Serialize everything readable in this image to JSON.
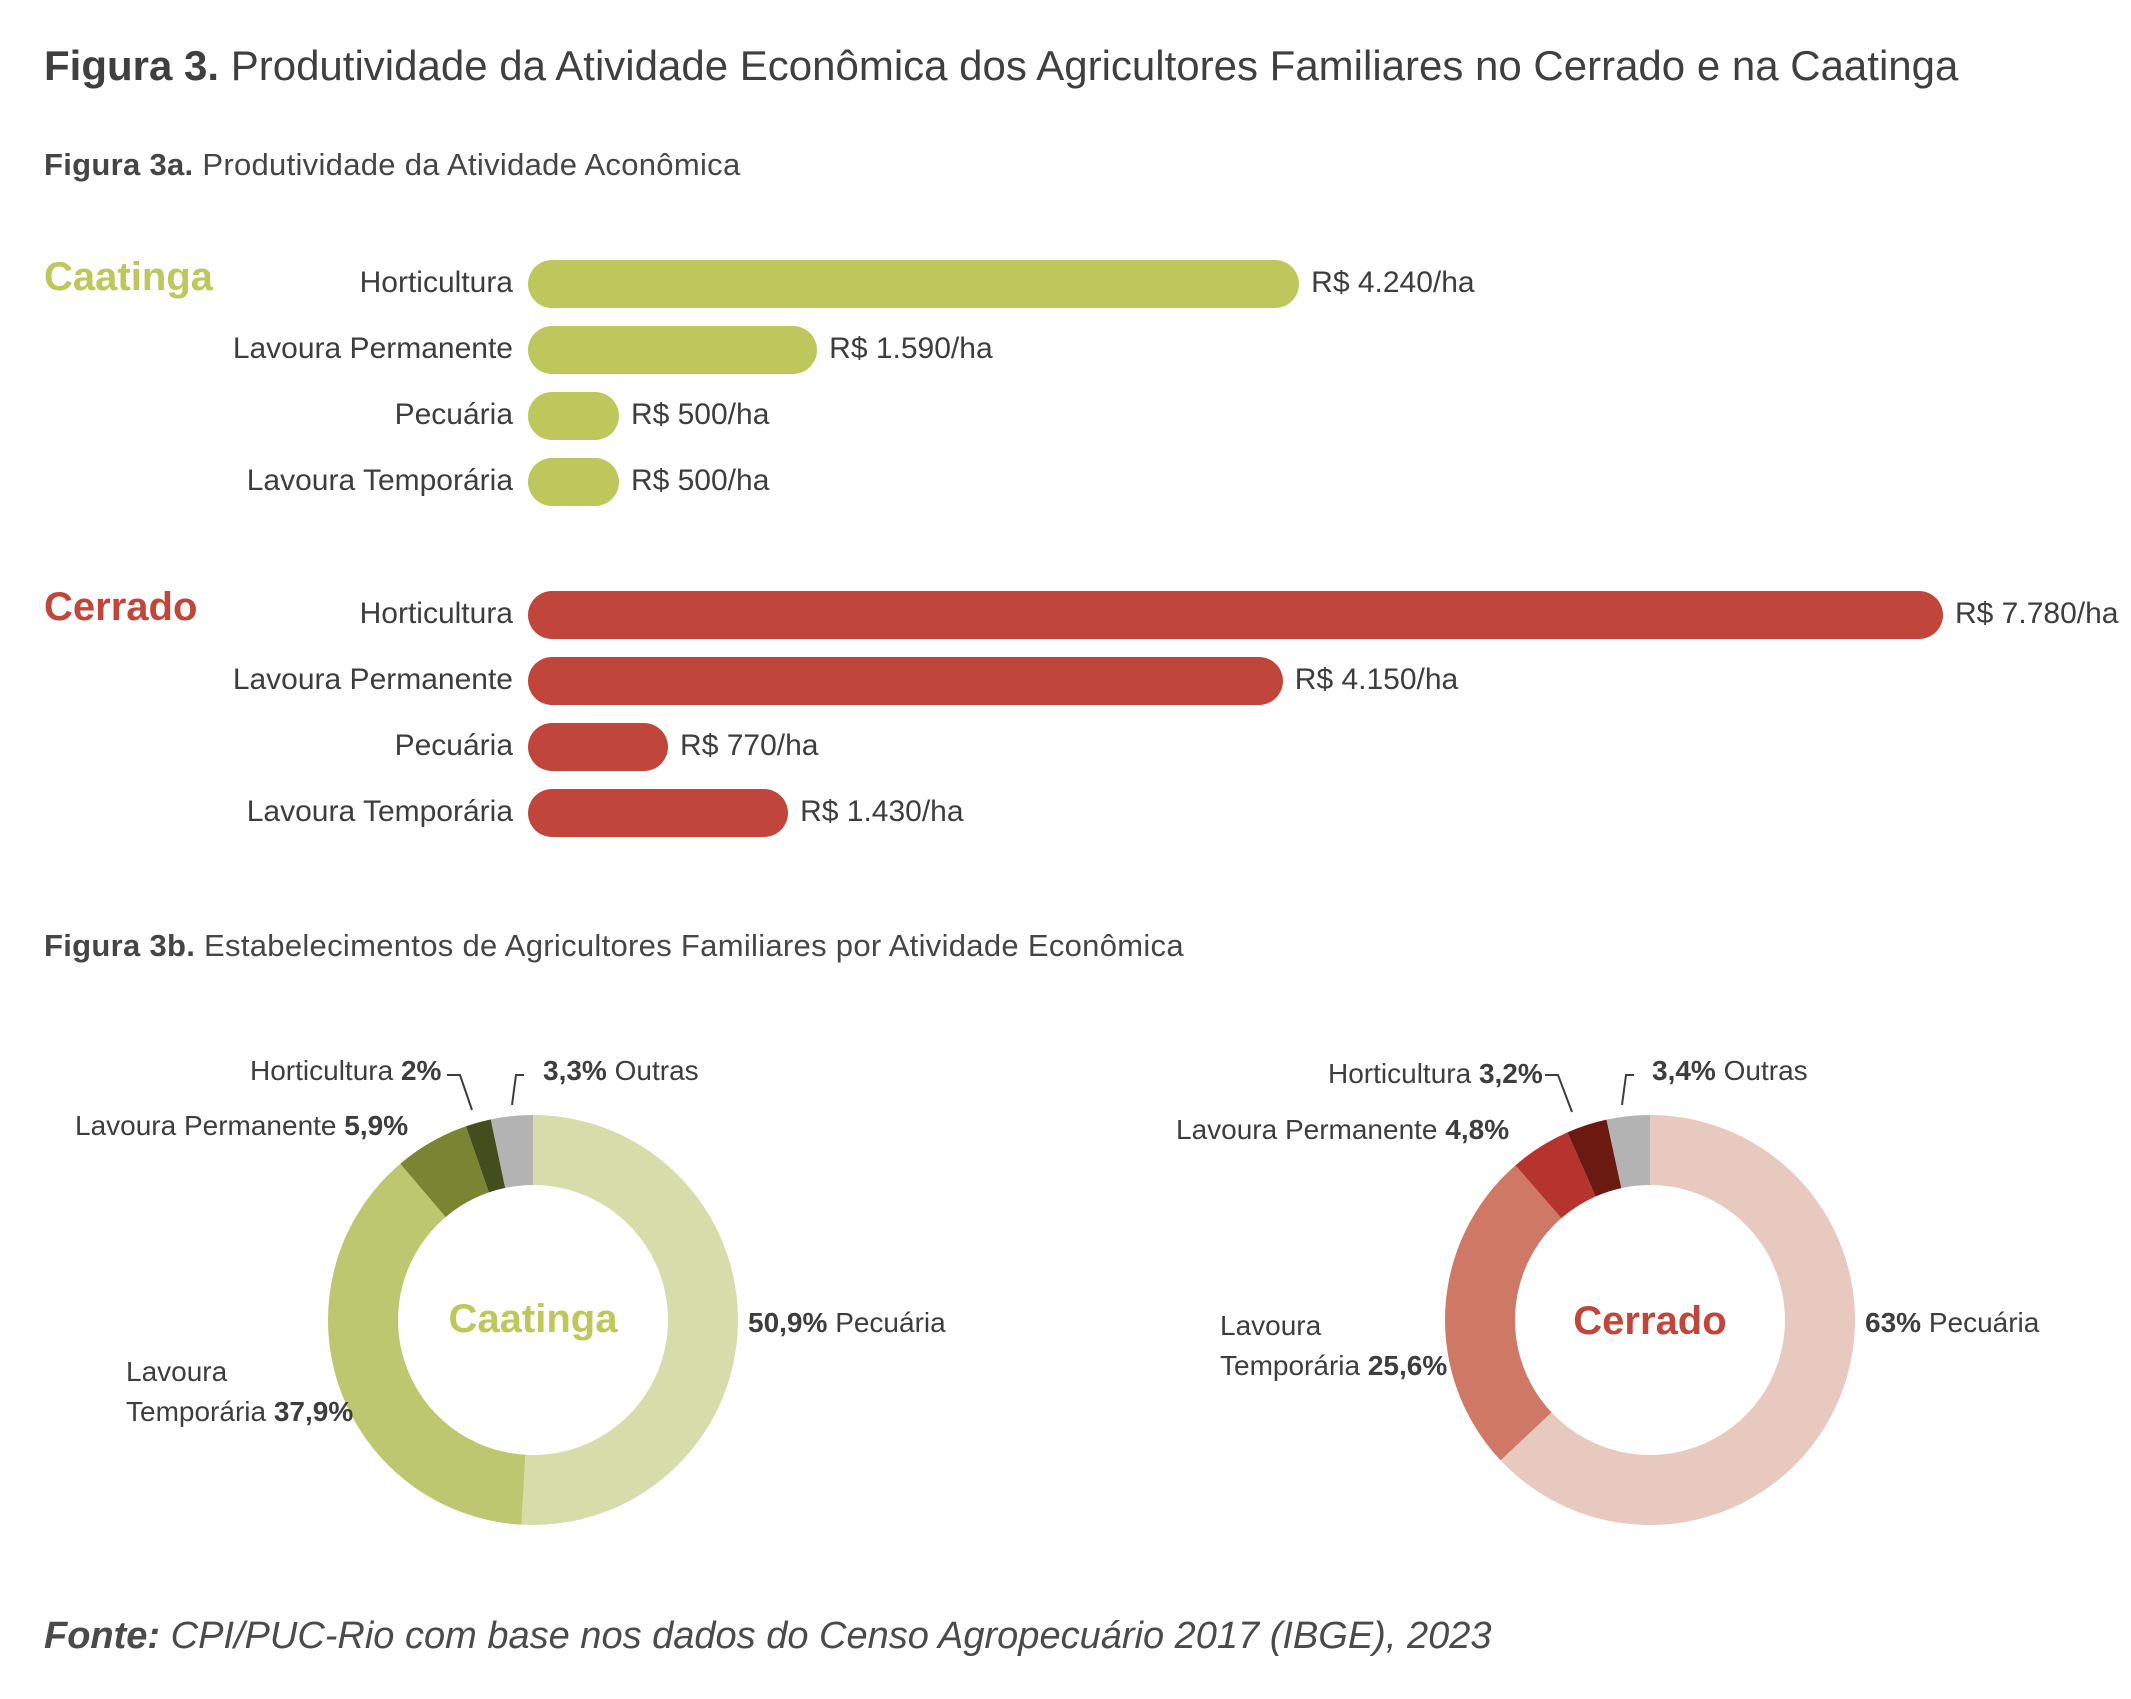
{
  "figure": {
    "title_bold": "Figura 3.",
    "title_rest": " Produtividade da Atividade Econômica dos Agricultores Familiares no Cerrado e na Caatinga"
  },
  "fig3a": {
    "title_bold": "Figura 3a.",
    "title_rest": " Produtividade da Atividade Aconômica"
  },
  "fig3b": {
    "title_bold": "Figura 3b.",
    "title_rest": " Estabelecimentos de Agricultores Familiares por Atividade Econômica"
  },
  "source": {
    "bold": "Fonte:",
    "rest": " CPI/PUC-Rio com base nos dados do Censo Agropecuário 2017 (IBGE), 2023"
  },
  "colors": {
    "caatinga": "#bdc75c",
    "cerrado": "#c0463b",
    "text": "#3d3d3d"
  },
  "chart_data": [
    {
      "type": "bar",
      "orientation": "horizontal",
      "title": "Figura 3a. Produtividade da Atividade Aconômica",
      "unit": "R$/ha",
      "groups": [
        {
          "name": "Caatinga",
          "categories": [
            "Horticultura",
            "Lavoura Permanente",
            "Pecuária",
            "Lavoura Temporária"
          ],
          "values": [
            4240,
            1590,
            500,
            500
          ],
          "value_labels": [
            "R$ 4.240/ha",
            "R$ 1.590/ha",
            "R$ 500/ha",
            "R$ 500/ha"
          ]
        },
        {
          "name": "Cerrado",
          "categories": [
            "Horticultura",
            "Lavoura Permanente",
            "Pecuária",
            "Lavoura Temporária"
          ],
          "values": [
            7780,
            4150,
            770,
            1430
          ],
          "value_labels": [
            "R$ 7.780/ha",
            "R$ 4.150/ha",
            "R$ 770/ha",
            "R$ 1.430/ha"
          ]
        }
      ],
      "xlim": [
        0,
        7780
      ]
    },
    {
      "type": "pie",
      "donut": true,
      "name": "Caatinga",
      "slices": [
        {
          "label": "Pecuária",
          "value": 50.9,
          "text": "50,9%",
          "color": "#d7ddaa"
        },
        {
          "label": "Lavoura Temporária",
          "value": 37.9,
          "text": "37,9%",
          "color": "#bdc770"
        },
        {
          "label": "Lavoura Permanente",
          "value": 5.9,
          "text": "5,9%",
          "color": "#7a8534"
        },
        {
          "label": "Horticultura",
          "value": 2.0,
          "text": "2%",
          "color": "#434d1e"
        },
        {
          "label": "Outras",
          "value": 3.3,
          "text": "3,3%",
          "color": "#b3b3b3"
        }
      ]
    },
    {
      "type": "pie",
      "donut": true,
      "name": "Cerrado",
      "slices": [
        {
          "label": "Pecuária",
          "value": 63.0,
          "text": "63%",
          "color": "#e8c9bf"
        },
        {
          "label": "Lavoura Temporária",
          "value": 25.6,
          "text": "25,6%",
          "color": "#d07866"
        },
        {
          "label": "Lavoura Permanente",
          "value": 4.8,
          "text": "4,8%",
          "color": "#b6342d"
        },
        {
          "label": "Horticultura",
          "value": 3.2,
          "text": "3,2%",
          "color": "#6b1a12"
        },
        {
          "label": "Outras",
          "value": 3.4,
          "text": "3,4%",
          "color": "#b3b3b3"
        }
      ]
    }
  ]
}
